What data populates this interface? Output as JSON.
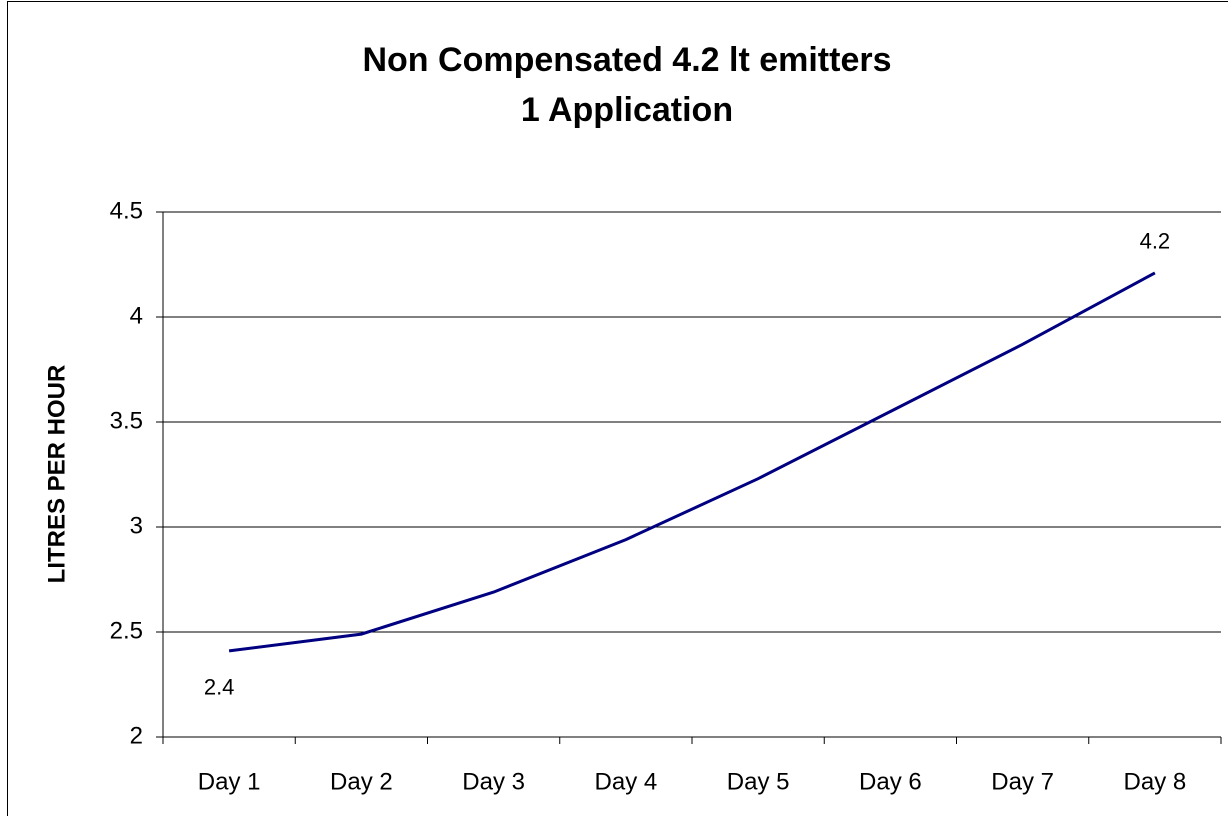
{
  "chart_data": {
    "type": "line",
    "title": [
      "Non Compensated 4.2 lt emitters",
      "1 Application"
    ],
    "ylabel": "LITRES PER HOUR",
    "categories": [
      "Day 1",
      "Day 2",
      "Day 3",
      "Day 4",
      "Day 5",
      "Day 6",
      "Day 7",
      "Day 8"
    ],
    "series": [
      {
        "name": "LITRES PER HOUR",
        "color": "#000080",
        "values": [
          2.41,
          2.49,
          2.69,
          2.94,
          3.23,
          3.55,
          3.87,
          4.21
        ],
        "value_labels": [
          "2.4",
          null,
          null,
          null,
          null,
          null,
          null,
          "4.2"
        ]
      }
    ],
    "ylim": [
      2,
      4.5
    ],
    "yticks": [
      2,
      2.5,
      3,
      3.5,
      4,
      4.5
    ],
    "grid": true
  }
}
